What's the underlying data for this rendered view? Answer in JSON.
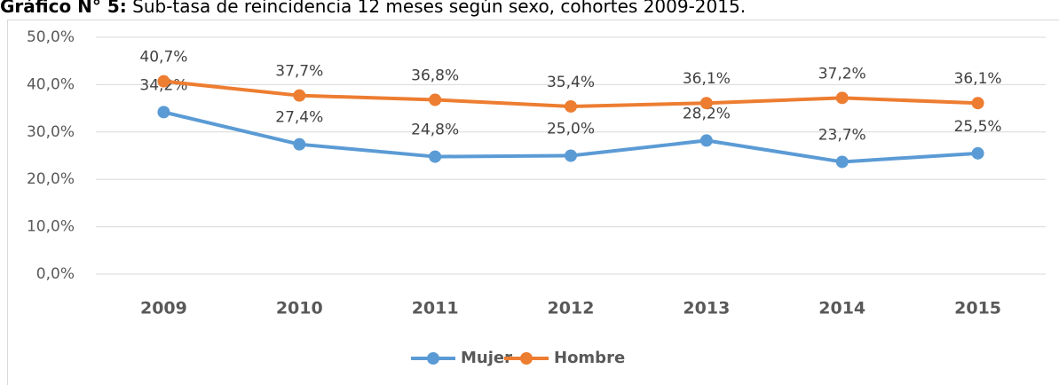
{
  "chart_data": {
    "type": "line",
    "title": "Gráfico N° 5:",
    "subtitle": "Sub-tasa de reincidencia 12 meses según sexo, cohortes 2009-2015.",
    "categories": [
      "2009",
      "2010",
      "2011",
      "2012",
      "2013",
      "2014",
      "2015"
    ],
    "series": [
      {
        "name": "Mujer",
        "color": "#5b9bd5",
        "values": [
          34.2,
          27.4,
          24.8,
          25.0,
          28.2,
          23.7,
          25.5
        ],
        "value_labels": [
          "34,2%",
          "27,4%",
          "24,8%",
          "25,0%",
          "28,2%",
          "23,7%",
          "25,5%"
        ]
      },
      {
        "name": "Hombre",
        "color": "#ed7d31",
        "values": [
          40.7,
          37.7,
          36.8,
          35.4,
          36.1,
          37.2,
          36.1
        ],
        "value_labels": [
          "40,7%",
          "37,7%",
          "36,8%",
          "35,4%",
          "36,1%",
          "37,2%",
          "36,1%"
        ]
      }
    ],
    "ylim": [
      0,
      50
    ],
    "yticks": [
      {
        "value": 0,
        "label": "0,0%"
      },
      {
        "value": 10,
        "label": "10,0%"
      },
      {
        "value": 20,
        "label": "20,0%"
      },
      {
        "value": 30,
        "label": "30,0%"
      },
      {
        "value": 40,
        "label": "40,0%"
      },
      {
        "value": 50,
        "label": "50,0%"
      }
    ],
    "grid": true,
    "legend": "bottom"
  }
}
